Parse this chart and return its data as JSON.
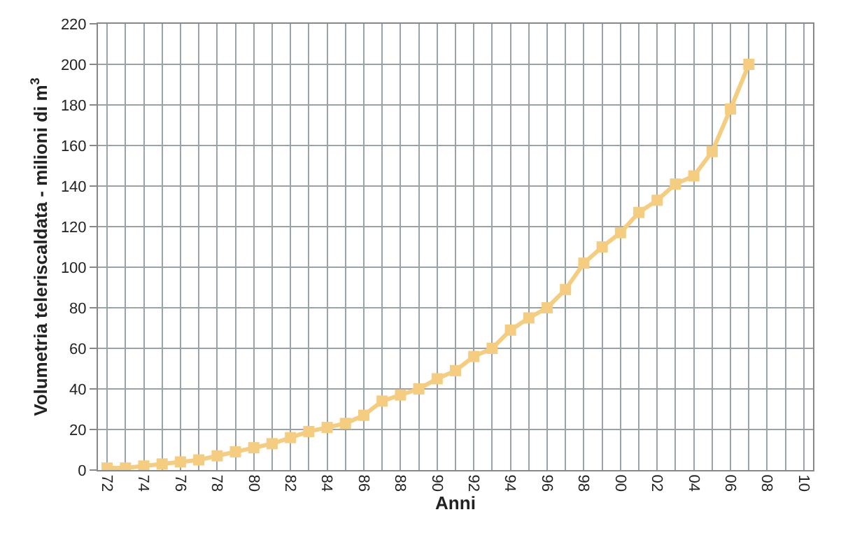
{
  "chart_data": {
    "type": "line",
    "xlabel": "Anni",
    "ylabel": "Volumetria teleriscaldata - milioni di m$^{3}$",
    "categories": [
      "72",
      null,
      "74",
      null,
      "76",
      null,
      "78",
      null,
      "80",
      null,
      "82",
      null,
      "84",
      null,
      "86",
      null,
      "88",
      null,
      "90",
      null,
      "92",
      null,
      "94",
      null,
      "96",
      null,
      "98",
      null,
      "00",
      null,
      "02",
      null,
      "04",
      null,
      "06",
      null,
      "08",
      null,
      "10"
    ],
    "series": [
      {
        "color": "#f5cd80",
        "values": [
          1,
          1,
          2,
          3,
          4,
          5,
          7,
          9,
          11,
          13,
          16,
          19,
          21,
          23,
          27,
          34,
          37,
          40,
          45,
          49,
          56,
          60,
          69,
          75,
          80,
          89,
          102,
          110,
          117,
          127,
          133,
          141,
          145,
          157,
          178,
          200,
          null,
          null,
          null
        ]
      }
    ],
    "ylim": [
      0,
      220
    ],
    "yticks": [
      0,
      20,
      40,
      60,
      80,
      100,
      120,
      140,
      160,
      180,
      200,
      220
    ],
    "grid": true,
    "marker": "square",
    "line_style": "solid",
    "legend": false
  }
}
